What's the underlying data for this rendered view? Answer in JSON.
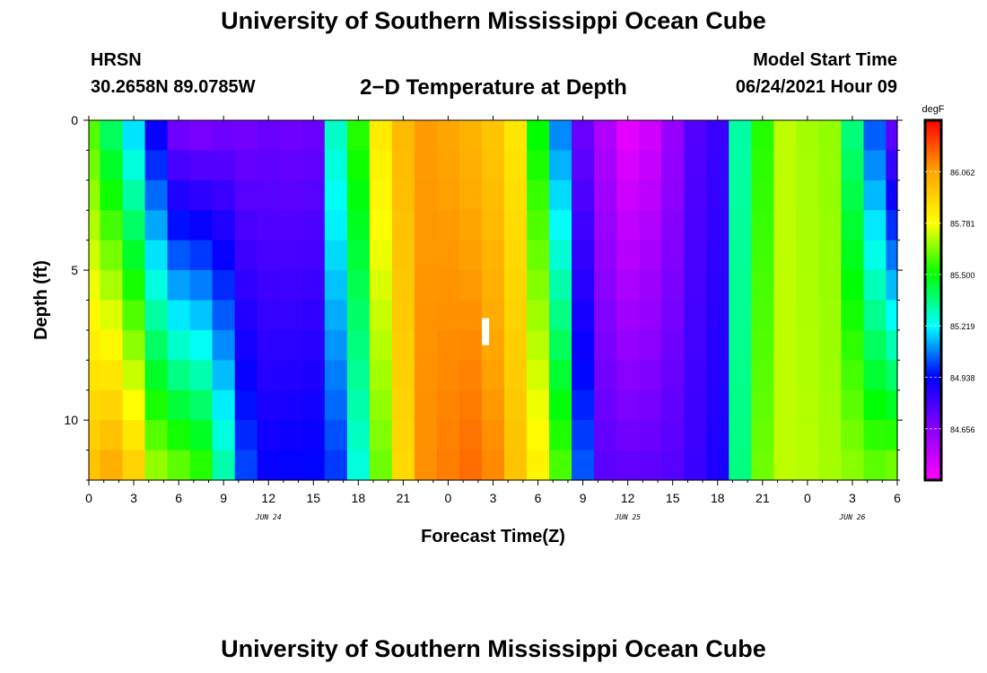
{
  "header": {
    "title": "University of Southern Mississippi Ocean Cube",
    "station": "HRSN",
    "coordinates": "30.2658N  89.0785W",
    "plot_title": "2−D Temperature at Depth",
    "model_start_label": "Model Start Time",
    "model_start_value": "06/24/2021 Hour 09"
  },
  "footer": {
    "title": "University of Southern Mississippi Ocean Cube"
  },
  "chart_data": {
    "type": "heatmap",
    "title": "2−D Temperature at Depth",
    "xlabel": "Forecast Time(Z)",
    "ylabel": "Depth (ft)",
    "x_ticks": [
      "0",
      "3",
      "6",
      "9",
      "12",
      "15",
      "18",
      "21",
      "0",
      "3",
      "6",
      "9",
      "12",
      "15",
      "18",
      "21",
      "0",
      "3",
      "6"
    ],
    "x_hours_range": [
      0,
      54
    ],
    "date_labels": [
      {
        "label": "JUN 24",
        "at_hour": 12
      },
      {
        "label": "JUN 25",
        "at_hour": 36
      },
      {
        "label": "JUN 26",
        "at_hour": 51
      }
    ],
    "y_ticks": [
      0,
      5,
      10
    ],
    "ylim": [
      0,
      12
    ],
    "y_inverted": true,
    "colorbar": {
      "unit": "degF",
      "labels": [
        "86.062",
        "85.781",
        "85.500",
        "85.219",
        "84.938",
        "84.656"
      ],
      "range": [
        84.375,
        86.344
      ],
      "colormap": [
        "#ff00ff",
        "#8800ff",
        "#0000ff",
        "#00ffff",
        "#00ff00",
        "#ffff00",
        "#ffa500",
        "#ff0000"
      ]
    },
    "depth_levels_ft": [
      0.5,
      1.5,
      2.5,
      3.5,
      4.5,
      5.5,
      6.5,
      7.5,
      8.5,
      9.5,
      10.5,
      11.5
    ],
    "hours": [
      0,
      1.5,
      3,
      4.5,
      6,
      7.5,
      9,
      10.5,
      12,
      13.5,
      15,
      16.5,
      18,
      19.5,
      21,
      22.5,
      24,
      25.5,
      27,
      28.5,
      30,
      31.5,
      33,
      34.5,
      36,
      37.5,
      39,
      40.5,
      42,
      43.5,
      45,
      46.5,
      48,
      49.5,
      51,
      52.5,
      54
    ],
    "surface_degF": [
      85.59,
      85.4,
      85.19,
      84.92,
      84.71,
      84.69,
      84.71,
      84.7,
      84.72,
      84.71,
      84.72,
      85.28,
      85.54,
      85.84,
      86.0,
      86.08,
      86.06,
      86.02,
      85.96,
      85.86,
      85.5,
      85.09,
      84.72,
      84.57,
      84.44,
      84.49,
      84.62,
      84.77,
      84.82,
      85.32,
      85.54,
      85.71,
      85.68,
      85.66,
      85.37,
      85.04,
      84.75
    ],
    "bottom_degF": [
      85.97,
      86.03,
      85.92,
      85.66,
      85.6,
      85.54,
      85.31,
      85.01,
      84.92,
      84.93,
      84.94,
      85.0,
      85.26,
      85.62,
      85.9,
      86.1,
      86.13,
      86.16,
      86.11,
      85.97,
      85.82,
      85.58,
      85.03,
      84.75,
      84.73,
      84.74,
      84.76,
      84.82,
      84.88,
      85.36,
      85.62,
      85.71,
      85.7,
      85.68,
      85.65,
      85.6,
      85.62
    ],
    "marker": {
      "hour": 26.5,
      "depth_ft": [
        6.6,
        7.5
      ],
      "color": "#ffffff"
    }
  }
}
